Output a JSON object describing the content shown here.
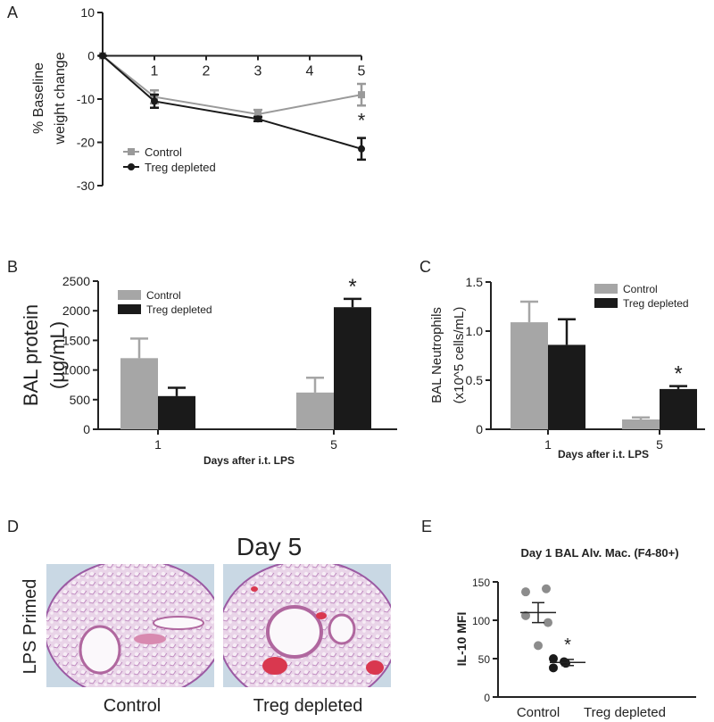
{
  "chart_data": [
    {
      "type": "line",
      "panel_label": "A",
      "ylabel": [
        "% Baseline",
        "weight change"
      ],
      "x": [
        0,
        1,
        3,
        5
      ],
      "xlim": [
        0,
        5
      ],
      "xticks": [
        1,
        2,
        3,
        4,
        5
      ],
      "ylim": [
        -30,
        10
      ],
      "yticks": [
        10,
        0,
        -10,
        -20,
        -30
      ],
      "series": [
        {
          "name": "Control",
          "color": "#9a9a9a",
          "marker": "square",
          "values": [
            0,
            -9.5,
            -13.5,
            -9
          ],
          "errors": [
            0,
            1.5,
            1,
            2.5
          ]
        },
        {
          "name": "Treg depleted",
          "color": "#1a1a1a",
          "marker": "circle",
          "values": [
            0,
            -10.5,
            -14.6,
            -21.5
          ],
          "errors": [
            0,
            1.5,
            0.5,
            2.5
          ],
          "significance": [
            null,
            null,
            null,
            "*"
          ]
        }
      ]
    },
    {
      "type": "bar",
      "panel_label": "B",
      "ylabel": [
        "BAL protein",
        "(µg/mL)"
      ],
      "xlabel": "Days after i.t. LPS",
      "categories": [
        "1",
        "5"
      ],
      "ylim": [
        0,
        2500
      ],
      "yticks": [
        0,
        500,
        1000,
        1500,
        2000,
        2500
      ],
      "series": [
        {
          "name": "Control",
          "color": "#a6a6a6",
          "values": [
            1200,
            620
          ],
          "errors": [
            330,
            250
          ]
        },
        {
          "name": "Treg depleted",
          "color": "#1a1a1a",
          "values": [
            560,
            2060
          ],
          "errors": [
            140,
            140
          ],
          "significance": [
            null,
            "*"
          ]
        }
      ]
    },
    {
      "type": "bar",
      "panel_label": "C",
      "ylabel": [
        "BAL Neutrophils",
        "(x10^5 cells/mL)"
      ],
      "xlabel": "Days after i.t. LPS",
      "categories": [
        "1",
        "5"
      ],
      "ylim": [
        0,
        1.5
      ],
      "yticks": [
        0,
        0.5,
        {
          "value": 1,
          "label": "1.0"
        },
        1.5
      ],
      "series": [
        {
          "name": "Control",
          "color": "#a6a6a6",
          "values": [
            1.09,
            0.1
          ],
          "errors": [
            0.21,
            0.02
          ]
        },
        {
          "name": "Treg depleted",
          "color": "#1a1a1a",
          "values": [
            0.86,
            0.41
          ],
          "errors": [
            0.26,
            0.03
          ],
          "significance": [
            null,
            "*"
          ]
        }
      ]
    },
    {
      "type": "dotplot",
      "panel_label": "E",
      "title": "Day 1 BAL Alv. Mac. (F4-80+)",
      "ylabel": "IL-10 MFI",
      "ylim": [
        0,
        150
      ],
      "yticks": [
        0,
        50,
        100,
        150
      ],
      "groups": [
        {
          "name": "Control",
          "color": "#8c8c8c",
          "values": [
            137,
            141,
            106,
            97,
            67
          ],
          "mean": 110,
          "sem": 13
        },
        {
          "name": "Treg depleted",
          "color": "#1a1a1a",
          "values": [
            50,
            38,
            46,
            44
          ],
          "mean": 45,
          "sem": 4,
          "significance": "*"
        }
      ]
    }
  ],
  "figure_d": {
    "panel_label": "D",
    "title": "Day 5",
    "row_label": "LPS Primed",
    "captions": [
      "Control",
      "Treg depleted"
    ]
  }
}
